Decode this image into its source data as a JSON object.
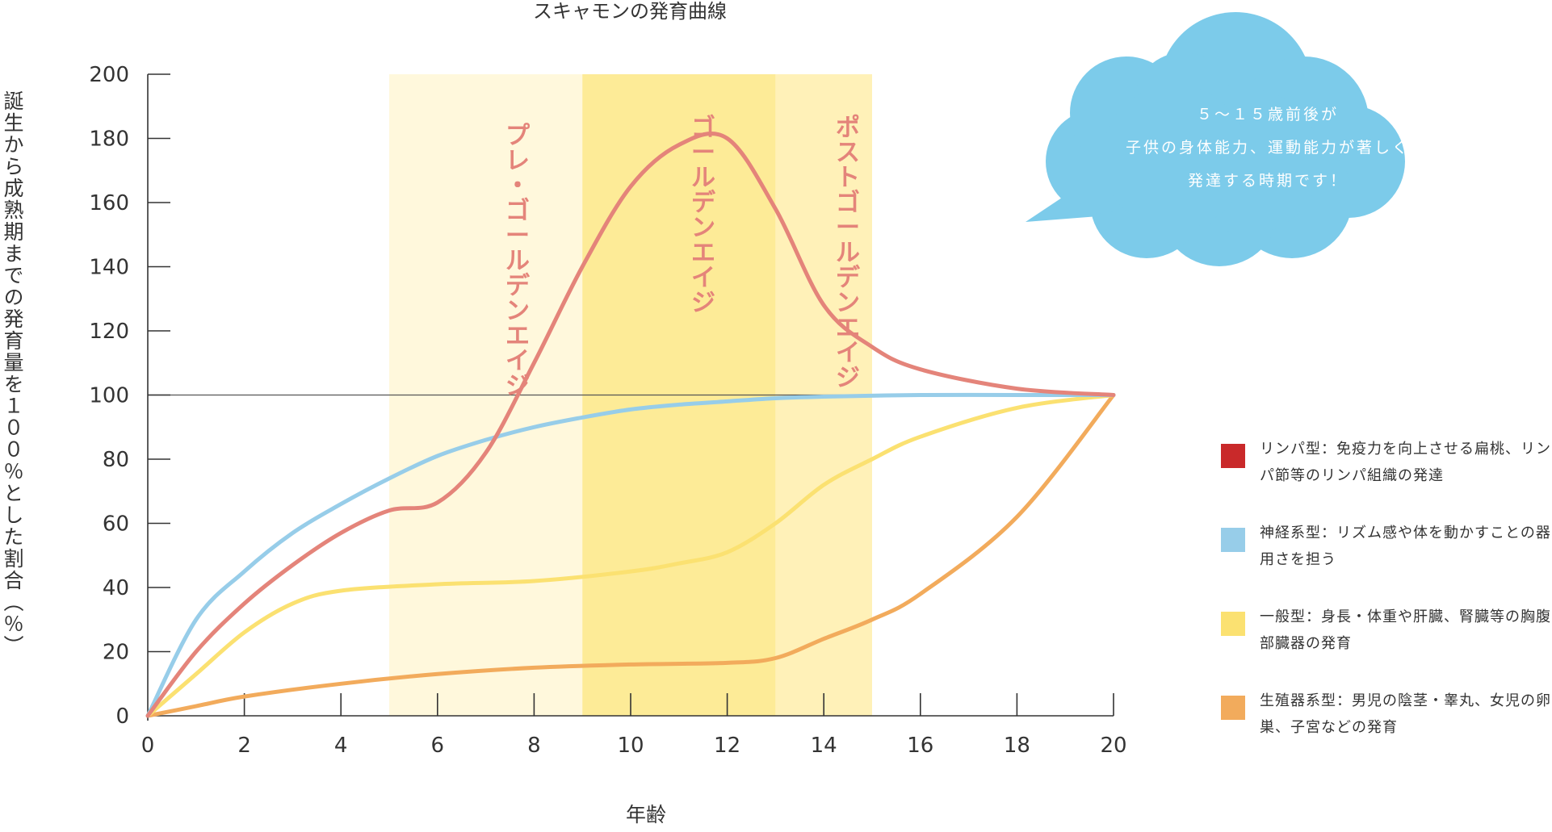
{
  "chart_data": {
    "type": "line",
    "title": "スキャモンの発育曲線",
    "xlabel": "年齢",
    "ylabel": "誕生から成熟期までの発育量を１００％とした割合（％）",
    "xlim": [
      0,
      20
    ],
    "ylim": [
      0,
      200
    ],
    "x_ticks": [
      "0",
      "2",
      "4",
      "6",
      "8",
      "10",
      "12",
      "14",
      "16",
      "18",
      "20"
    ],
    "y_ticks": [
      "0",
      "20",
      "40",
      "60",
      "80",
      "100",
      "120",
      "140",
      "160",
      "180",
      "200"
    ],
    "reference_line": 100,
    "periods": [
      {
        "label": "プレ・ゴールデンエイジ",
        "x_start": 5,
        "x_end": 9,
        "color": "#fff8dc"
      },
      {
        "label": "ゴールデンエイジ",
        "x_start": 9,
        "x_end": 13,
        "color": "#fdeb97"
      },
      {
        "label": "ポストゴールデンエイジ",
        "x_start": 13,
        "x_end": 15,
        "color": "#fff1b8"
      }
    ],
    "series": [
      {
        "name": "神経系型",
        "color": "#97cde9",
        "points": [
          [
            0,
            0
          ],
          [
            1,
            30
          ],
          [
            2,
            45
          ],
          [
            3,
            57
          ],
          [
            4,
            66
          ],
          [
            5,
            74
          ],
          [
            6,
            81
          ],
          [
            7,
            86
          ],
          [
            8,
            90
          ],
          [
            9,
            93
          ],
          [
            10,
            95.5
          ],
          [
            11,
            97
          ],
          [
            12,
            98
          ],
          [
            13,
            99
          ],
          [
            14,
            99.5
          ],
          [
            16,
            100
          ],
          [
            18,
            100
          ],
          [
            20,
            100
          ]
        ]
      },
      {
        "name": "リンパ型",
        "color": "#e4847a",
        "points": [
          [
            0,
            0
          ],
          [
            1,
            20
          ],
          [
            2,
            35
          ],
          [
            3,
            47
          ],
          [
            4,
            57
          ],
          [
            5,
            64
          ],
          [
            6,
            66.5
          ],
          [
            7,
            82
          ],
          [
            8,
            110
          ],
          [
            9,
            140
          ],
          [
            10,
            165
          ],
          [
            11,
            178
          ],
          [
            12,
            180
          ],
          [
            13,
            158
          ],
          [
            14,
            128
          ],
          [
            15,
            115
          ],
          [
            16,
            108
          ],
          [
            18,
            102
          ],
          [
            20,
            100
          ]
        ]
      },
      {
        "name": "一般型",
        "color": "#fbe171",
        "points": [
          [
            0,
            0
          ],
          [
            1,
            13
          ],
          [
            2,
            26
          ],
          [
            3,
            35
          ],
          [
            4,
            39
          ],
          [
            6,
            41
          ],
          [
            8,
            42
          ],
          [
            10,
            45
          ],
          [
            11,
            47.5
          ],
          [
            12,
            51
          ],
          [
            13,
            60
          ],
          [
            14,
            72
          ],
          [
            15,
            80
          ],
          [
            16,
            87
          ],
          [
            18,
            96
          ],
          [
            20,
            100
          ]
        ]
      },
      {
        "name": "生殖器系型",
        "color": "#f2ab5c",
        "points": [
          [
            0,
            0
          ],
          [
            1,
            3
          ],
          [
            2,
            6
          ],
          [
            4,
            10
          ],
          [
            6,
            13
          ],
          [
            8,
            15
          ],
          [
            10,
            16
          ],
          [
            12,
            16.5
          ],
          [
            13,
            18
          ],
          [
            14,
            24
          ],
          [
            15,
            30
          ],
          [
            16,
            38
          ],
          [
            18,
            62
          ],
          [
            20,
            100
          ]
        ]
      }
    ],
    "legend": [
      {
        "text": "リンパ型：免疫力を向上させる扁桃、リンパ節等のリンパ組織の発達",
        "color": "#c9292a"
      },
      {
        "text": "神経系型：リズム感や体を動かすことの器用さを担う",
        "color": "#97cde9"
      },
      {
        "text": "一般型：身長・体重や肝臓、腎臓等の胸腹部臓器の発育",
        "color": "#fbe171"
      },
      {
        "text": "生殖器系型：男児の陰茎・睾丸、女児の卵巣、子宮などの発育",
        "color": "#f2ab5c"
      }
    ],
    "annotation": {
      "lines": [
        "５～１５歳前後が",
        "子供の身体能力、運動能力が著しく",
        "発達する時期です！"
      ],
      "color": "#7ccbea"
    }
  }
}
